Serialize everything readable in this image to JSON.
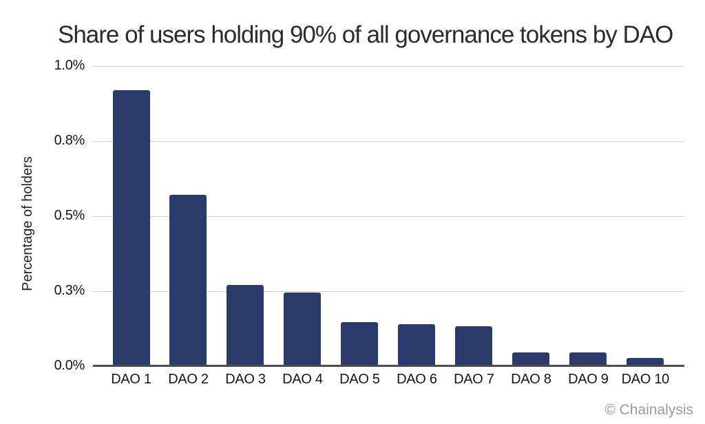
{
  "chart_data": {
    "type": "bar",
    "title": "Share of users holding 90% of all governance tokens by DAO",
    "categories": [
      "DAO 1",
      "DAO 2",
      "DAO 3",
      "DAO 4",
      "DAO 5",
      "DAO 6",
      "DAO 7",
      "DAO 8",
      "DAO 9",
      "DAO 10"
    ],
    "values": [
      0.92,
      0.57,
      0.27,
      0.245,
      0.146,
      0.139,
      0.134,
      0.047,
      0.045,
      0.028
    ],
    "xlabel": "",
    "ylabel": "Percentage of holders",
    "ylim": [
      0,
      1.0
    ],
    "yticks": [
      0,
      0.25,
      0.5,
      0.75,
      1.0
    ],
    "ytick_labels": [
      "0.0%",
      "0.3%",
      "0.5%",
      "0.8%",
      "1.0%"
    ],
    "grid": "horizontal",
    "legend": "none",
    "bar_color": "#2a3a6b",
    "grid_color": "#cfcfcf",
    "axis_color": "#4d4d4d",
    "credit": "© Chainalysis",
    "credit_color": "#9a9a9a"
  }
}
